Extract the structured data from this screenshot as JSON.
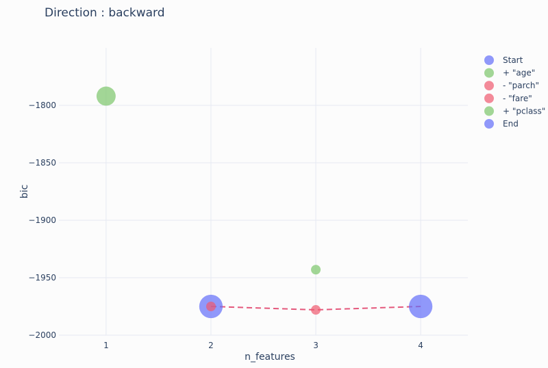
{
  "chart_data": {
    "type": "scatter",
    "title": "Direction : backward",
    "xlabel": "n_features",
    "ylabel": "bic",
    "xlim": [
      0.55,
      4.45
    ],
    "ylim": [
      -2000,
      -1750
    ],
    "x_ticks": [
      1,
      2,
      3,
      4
    ],
    "y_ticks": [
      -2000,
      -1950,
      -1900,
      -1850,
      -1800
    ],
    "y_tick_labels": [
      "−2000",
      "−1950",
      "−1900",
      "−1850",
      "−1800"
    ],
    "grid": true,
    "legend_position": "right",
    "series": [
      {
        "name": "Start",
        "color": "#636efa",
        "points": [
          {
            "x": 4,
            "y": -1975,
            "size": 6
          }
        ]
      },
      {
        "name": "+ \"age\"",
        "color": "#7cc66b",
        "points": [
          {
            "x": 1,
            "y": -1792,
            "size": 4
          }
        ]
      },
      {
        "name": "- \"parch\"",
        "color": "#ef5a6f",
        "points": [
          {
            "x": 3,
            "y": -1978,
            "size": 1
          }
        ]
      },
      {
        "name": "- \"fare\"",
        "color": "#ef5a6f",
        "points": [
          {
            "x": 2,
            "y": -1975,
            "size": 1
          }
        ]
      },
      {
        "name": "+ \"pclass\"",
        "color": "#7cc66b",
        "points": [
          {
            "x": 3,
            "y": -1943,
            "size": 1
          }
        ]
      },
      {
        "name": "End",
        "color": "#636efa",
        "points": [
          {
            "x": 2,
            "y": -1975,
            "size": 6
          }
        ]
      }
    ],
    "path": {
      "style": "dashed",
      "color": "#e4577b",
      "x": [
        2,
        3,
        4
      ],
      "y": [
        -1975,
        -1978,
        -1975
      ]
    }
  }
}
